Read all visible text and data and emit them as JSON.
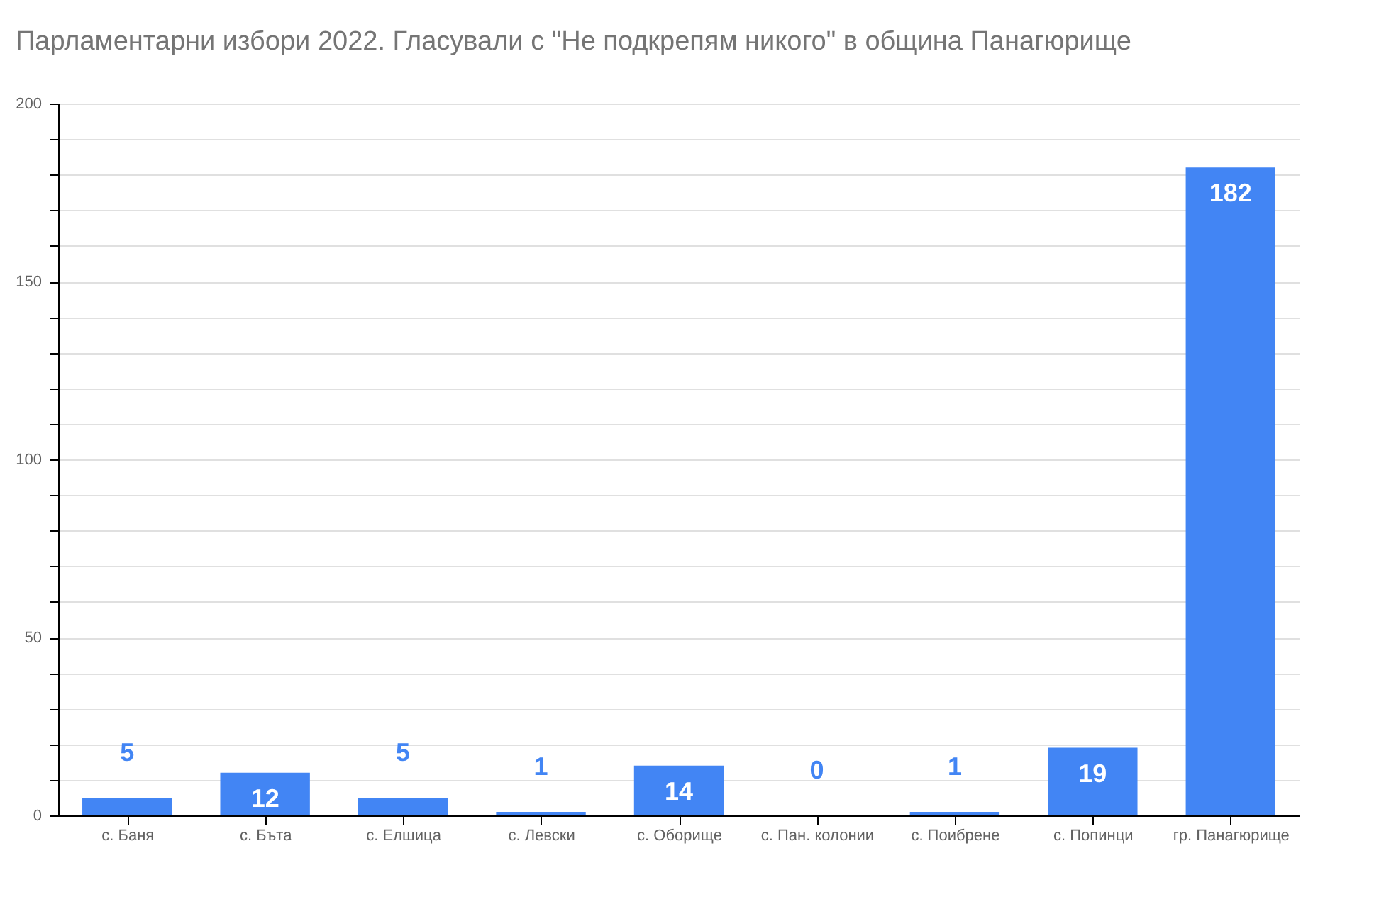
{
  "chart_data": {
    "type": "bar",
    "title": "Парламентарни избори 2022. Гласували с \"Не подкрепям никого\" в община Панагюрище",
    "categories": [
      "с. Баня",
      "с. Бъта",
      "с. Елшица",
      "с. Левски",
      "с. Оборище",
      "с. Пан. колонии",
      "с. Поибрене",
      "с. Попинци",
      "гр. Панагюрище"
    ],
    "values": [
      5,
      12,
      5,
      1,
      14,
      0,
      1,
      19,
      182
    ],
    "color": "#4285f4",
    "ylim": [
      0,
      200
    ],
    "yticks": [
      0,
      {
        "value": 10,
        "label": null
      },
      {
        "value": 20,
        "label": null
      },
      {
        "value": 30,
        "label": null
      },
      {
        "value": 40,
        "label": null
      },
      50,
      {
        "value": 60,
        "label": null
      },
      {
        "value": 70,
        "label": null
      },
      {
        "value": 80,
        "label": null
      },
      {
        "value": 90,
        "label": null
      },
      100,
      {
        "value": 110,
        "label": null
      },
      {
        "value": 120,
        "label": null
      },
      {
        "value": 130,
        "label": null
      },
      {
        "value": 140,
        "label": null
      },
      150,
      {
        "value": 160,
        "label": null
      },
      {
        "value": 170,
        "label": null
      },
      {
        "value": 180,
        "label": null
      },
      {
        "value": 190,
        "label": null
      },
      200
    ],
    "grid": true,
    "data_labels": true
  }
}
